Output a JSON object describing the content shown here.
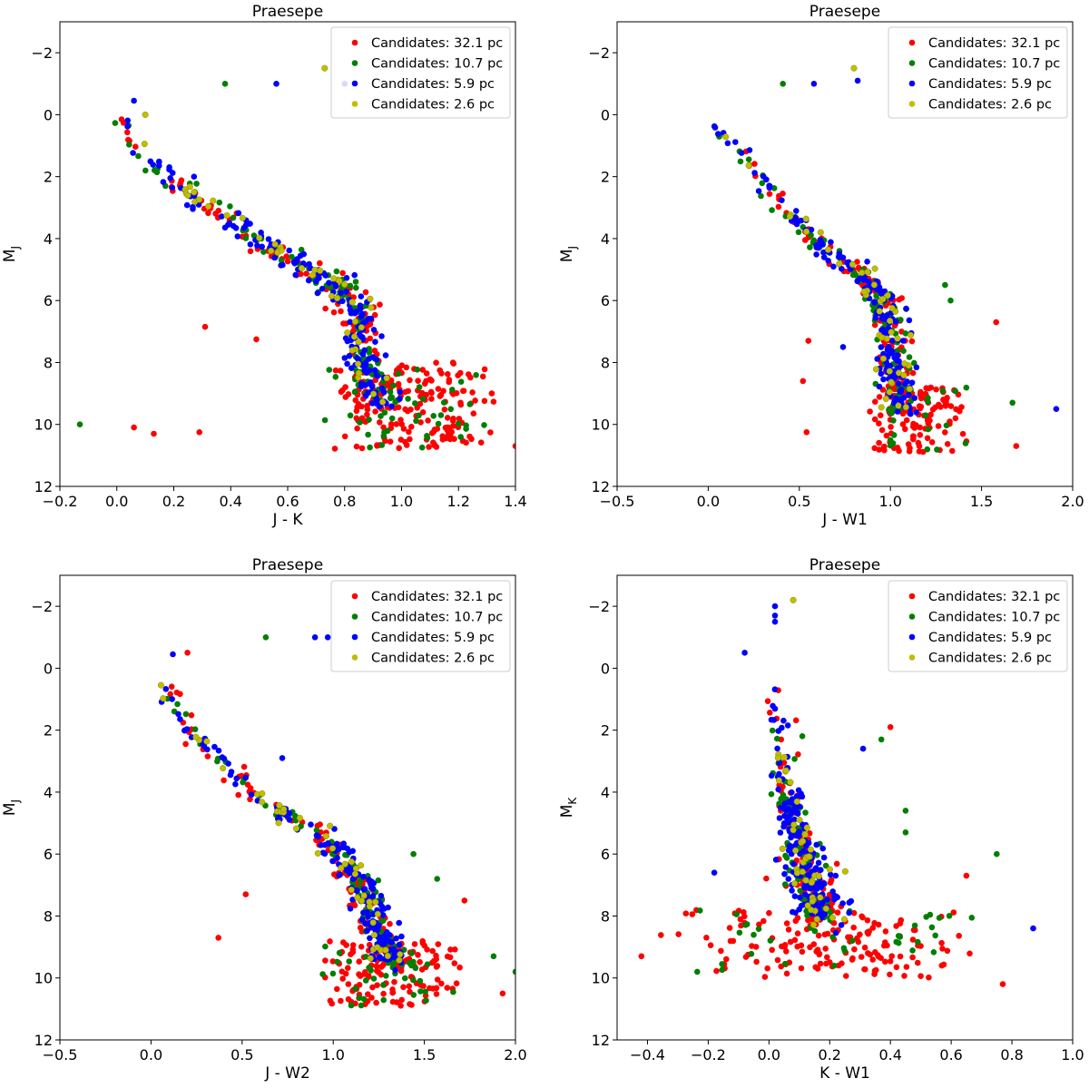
{
  "chart_data": [
    {
      "type": "scatter",
      "title": "Praesepe",
      "xlabel": "J - K",
      "ylabel": "M",
      "ylabel_sub": "J",
      "xlim": [
        -0.2,
        1.4
      ],
      "ylim": [
        12,
        -3
      ],
      "xticks": [
        -0.2,
        0.0,
        0.2,
        0.4,
        0.6,
        0.8,
        1.0,
        1.2,
        1.4
      ],
      "xtick_labels": [
        "−0.2",
        "0.0",
        "0.2",
        "0.4",
        "0.6",
        "0.8",
        "1.0",
        "1.2",
        "1.4"
      ],
      "yticks": [
        -2,
        0,
        2,
        4,
        6,
        8,
        10,
        12
      ],
      "ytick_labels": [
        "−2",
        "0",
        "2",
        "4",
        "6",
        "8",
        "10",
        "12"
      ],
      "legend_position": "top-right",
      "series": [
        {
          "name": "Candidates: 32.1 pc",
          "color": "#ff0000"
        },
        {
          "name": "Candidates: 10.7 pc",
          "color": "#007f00"
        },
        {
          "name": "Candidates: 5.9 pc",
          "color": "#0000ff"
        },
        {
          "name": "Candidates: 2.6 pc",
          "color": "#bfbf00"
        }
      ],
      "sequence": [
        [
          -0.02,
          0.0
        ],
        [
          0.05,
          0.8
        ],
        [
          0.15,
          1.8
        ],
        [
          0.3,
          2.8
        ],
        [
          0.45,
          3.8
        ],
        [
          0.6,
          4.6
        ],
        [
          0.72,
          5.2
        ],
        [
          0.82,
          5.8
        ],
        [
          0.86,
          7.0
        ],
        [
          0.88,
          8.3
        ],
        [
          0.92,
          9.4
        ]
      ],
      "outliers": [
        {
          "x": 0.38,
          "y": -1.0,
          "s": 1
        },
        {
          "x": 0.56,
          "y": -1.0,
          "s": 2
        },
        {
          "x": 0.73,
          "y": -1.5,
          "s": 3
        },
        {
          "x": 0.8,
          "y": -1.0,
          "s": 2
        },
        {
          "x": -0.13,
          "y": 10.0,
          "s": 1
        },
        {
          "x": 0.06,
          "y": 10.1,
          "s": 0
        },
        {
          "x": 0.13,
          "y": 10.3,
          "s": 0
        },
        {
          "x": 0.29,
          "y": 10.25,
          "s": 0
        },
        {
          "x": 0.31,
          "y": 6.85,
          "s": 0
        },
        {
          "x": 0.49,
          "y": 7.25,
          "s": 0
        },
        {
          "x": 1.4,
          "y": 10.7,
          "s": 0
        },
        {
          "x": 1.24,
          "y": 9.35,
          "s": 1
        },
        {
          "x": 0.1,
          "y": 0.0,
          "s": 3
        },
        {
          "x": 0.06,
          "y": -0.45,
          "s": 2
        }
      ],
      "spread": {
        "main_x": 0.025,
        "main_y": 0.15,
        "clump_x": 0.05,
        "clump_y": 0.4
      },
      "clump": {
        "x": [
          0.72,
          1.35
        ],
        "y": [
          8.0,
          10.8
        ],
        "n": 230
      },
      "counts": [
        120,
        90,
        170,
        45
      ]
    },
    {
      "type": "scatter",
      "title": "Praesepe",
      "xlabel": "J - W1",
      "ylabel": "M",
      "ylabel_sub": "J",
      "xlim": [
        -0.5,
        2.0
      ],
      "ylim": [
        12,
        -3
      ],
      "xticks": [
        -0.5,
        0.0,
        0.5,
        1.0,
        1.5,
        2.0
      ],
      "xtick_labels": [
        "−0.5",
        "0.0",
        "0.5",
        "1.0",
        "1.5",
        "2.0"
      ],
      "yticks": [
        -2,
        0,
        2,
        4,
        6,
        8,
        10,
        12
      ],
      "ytick_labels": [
        "−2",
        "0",
        "2",
        "4",
        "6",
        "8",
        "10",
        "12"
      ],
      "legend_position": "top-right",
      "series": [
        {
          "name": "Candidates: 32.1 pc",
          "color": "#ff0000"
        },
        {
          "name": "Candidates: 10.7 pc",
          "color": "#007f00"
        },
        {
          "name": "Candidates: 5.9 pc",
          "color": "#0000ff"
        },
        {
          "name": "Candidates: 2.6 pc",
          "color": "#bfbf00"
        }
      ],
      "sequence": [
        [
          -0.02,
          0.0
        ],
        [
          0.1,
          0.7
        ],
        [
          0.25,
          1.8
        ],
        [
          0.45,
          3.2
        ],
        [
          0.65,
          4.3
        ],
        [
          0.85,
          5.2
        ],
        [
          0.97,
          6.0
        ],
        [
          1.0,
          7.0
        ],
        [
          1.02,
          8.3
        ],
        [
          1.08,
          9.5
        ]
      ],
      "outliers": [
        {
          "x": 0.41,
          "y": -1.0,
          "s": 1
        },
        {
          "x": 0.58,
          "y": -1.0,
          "s": 2
        },
        {
          "x": 0.8,
          "y": -1.5,
          "s": 3
        },
        {
          "x": 0.82,
          "y": -1.1,
          "s": 2
        },
        {
          "x": 1.91,
          "y": 9.5,
          "s": 2
        },
        {
          "x": 1.67,
          "y": 9.3,
          "s": 1
        },
        {
          "x": 0.54,
          "y": 10.25,
          "s": 0
        },
        {
          "x": 0.52,
          "y": 8.6,
          "s": 0
        },
        {
          "x": 0.74,
          "y": 7.5,
          "s": 2
        },
        {
          "x": 0.55,
          "y": 7.3,
          "s": 0
        },
        {
          "x": 1.58,
          "y": 6.7,
          "s": 0
        },
        {
          "x": 1.69,
          "y": 10.7,
          "s": 0
        },
        {
          "x": 1.3,
          "y": 5.5,
          "s": 1
        },
        {
          "x": 1.33,
          "y": 6.0,
          "s": 1
        }
      ],
      "spread": {
        "main_x": 0.03,
        "main_y": 0.15,
        "clump_x": 0.07,
        "clump_y": 0.35
      },
      "clump": {
        "x": [
          0.85,
          1.45
        ],
        "y": [
          8.8,
          10.9
        ],
        "n": 150
      },
      "counts": [
        120,
        90,
        170,
        45
      ]
    },
    {
      "type": "scatter",
      "title": "Praesepe",
      "xlabel": "J - W2",
      "ylabel": "M",
      "ylabel_sub": "J",
      "xlim": [
        -0.5,
        2.0
      ],
      "ylim": [
        12,
        -3
      ],
      "xticks": [
        -0.5,
        0.0,
        0.5,
        1.0,
        1.5,
        2.0
      ],
      "xtick_labels": [
        "−0.5",
        "0.0",
        "0.5",
        "1.0",
        "1.5",
        "2.0"
      ],
      "yticks": [
        -2,
        0,
        2,
        4,
        6,
        8,
        10,
        12
      ],
      "ytick_labels": [
        "−2",
        "0",
        "2",
        "4",
        "6",
        "8",
        "10",
        "12"
      ],
      "legend_position": "top-right",
      "series": [
        {
          "name": "Candidates: 32.1 pc",
          "color": "#ff0000"
        },
        {
          "name": "Candidates: 10.7 pc",
          "color": "#007f00"
        },
        {
          "name": "Candidates: 5.9 pc",
          "color": "#0000ff"
        },
        {
          "name": "Candidates: 2.6 pc",
          "color": "#bfbf00"
        }
      ],
      "sequence": [
        [
          0.03,
          0.0
        ],
        [
          0.1,
          1.0
        ],
        [
          0.25,
          2.2
        ],
        [
          0.45,
          3.5
        ],
        [
          0.7,
          4.6
        ],
        [
          0.95,
          5.5
        ],
        [
          1.12,
          6.6
        ],
        [
          1.2,
          7.6
        ],
        [
          1.25,
          8.6
        ],
        [
          1.32,
          9.6
        ]
      ],
      "outliers": [
        {
          "x": 0.63,
          "y": -1.0,
          "s": 1
        },
        {
          "x": 0.9,
          "y": -1.0,
          "s": 2
        },
        {
          "x": 0.97,
          "y": -1.0,
          "s": 2
        },
        {
          "x": 0.12,
          "y": -0.45,
          "s": 2
        },
        {
          "x": 0.2,
          "y": -0.5,
          "s": 0
        },
        {
          "x": 0.37,
          "y": 8.7,
          "s": 0
        },
        {
          "x": 0.52,
          "y": 7.3,
          "s": 0
        },
        {
          "x": 0.72,
          "y": 2.9,
          "s": 2
        },
        {
          "x": 1.88,
          "y": 9.3,
          "s": 1
        },
        {
          "x": 2.0,
          "y": 9.8,
          "s": 1
        },
        {
          "x": 1.93,
          "y": 10.5,
          "s": 0
        },
        {
          "x": 1.72,
          "y": 7.5,
          "s": 0
        },
        {
          "x": 1.57,
          "y": 6.8,
          "s": 1
        },
        {
          "x": 1.44,
          "y": 6.0,
          "s": 1
        }
      ],
      "spread": {
        "main_x": 0.03,
        "main_y": 0.15,
        "clump_x": 0.08,
        "clump_y": 0.4
      },
      "clump": {
        "x": [
          0.9,
          1.75
        ],
        "y": [
          8.8,
          10.9
        ],
        "n": 170
      },
      "counts": [
        120,
        90,
        170,
        45
      ]
    },
    {
      "type": "scatter",
      "title": "Praesepe",
      "xlabel": "K - W1",
      "ylabel": "M",
      "ylabel_sub": "K",
      "xlim": [
        -0.5,
        1.0
      ],
      "ylim": [
        12,
        -3
      ],
      "xticks": [
        -0.4,
        -0.2,
        0.0,
        0.2,
        0.4,
        0.6,
        0.8,
        1.0
      ],
      "xtick_labels": [
        "−0.4",
        "−0.2",
        "0.0",
        "0.2",
        "0.4",
        "0.6",
        "0.8",
        "1.0"
      ],
      "yticks": [
        -2,
        0,
        2,
        4,
        6,
        8,
        10,
        12
      ],
      "ytick_labels": [
        "−2",
        "0",
        "2",
        "4",
        "6",
        "8",
        "10",
        "12"
      ],
      "legend_position": "top-right",
      "series": [
        {
          "name": "Candidates: 32.1 pc",
          "color": "#ff0000"
        },
        {
          "name": "Candidates: 10.7 pc",
          "color": "#007f00"
        },
        {
          "name": "Candidates: 5.9 pc",
          "color": "#0000ff"
        },
        {
          "name": "Candidates: 2.6 pc",
          "color": "#bfbf00"
        }
      ],
      "sequence": [
        [
          0.02,
          0.2
        ],
        [
          0.04,
          2.0
        ],
        [
          0.05,
          3.5
        ],
        [
          0.08,
          5.0
        ],
        [
          0.12,
          6.2
        ],
        [
          0.15,
          7.2
        ],
        [
          0.18,
          8.0
        ]
      ],
      "outliers": [
        {
          "x": 0.02,
          "y": -2.0,
          "s": 2
        },
        {
          "x": 0.02,
          "y": -1.7,
          "s": 2
        },
        {
          "x": 0.08,
          "y": -2.2,
          "s": 3
        },
        {
          "x": 0.02,
          "y": -1.5,
          "s": 2
        },
        {
          "x": -0.08,
          "y": -0.5,
          "s": 2
        },
        {
          "x": -0.18,
          "y": 6.6,
          "s": 2
        },
        {
          "x": 0.87,
          "y": 8.4,
          "s": 2
        },
        {
          "x": 0.75,
          "y": 6.0,
          "s": 1
        },
        {
          "x": 0.45,
          "y": 4.6,
          "s": 1
        },
        {
          "x": 0.45,
          "y": 5.3,
          "s": 1
        },
        {
          "x": 0.4,
          "y": 1.9,
          "s": 0
        },
        {
          "x": 0.65,
          "y": 6.7,
          "s": 0
        },
        {
          "x": -0.42,
          "y": 9.3,
          "s": 0
        },
        {
          "x": 0.77,
          "y": 10.2,
          "s": 0
        },
        {
          "x": 0.31,
          "y": 2.6,
          "s": 2
        },
        {
          "x": 0.37,
          "y": 2.3,
          "s": 1
        }
      ],
      "spread": {
        "main_x": 0.025,
        "main_y": 0.2,
        "clump_x": 0.05,
        "clump_y": 0.3
      },
      "clump": {
        "x": [
          -0.4,
          0.75
        ],
        "y": [
          7.8,
          10.0
        ],
        "n": 190
      },
      "counts": [
        120,
        90,
        170,
        45
      ]
    }
  ]
}
